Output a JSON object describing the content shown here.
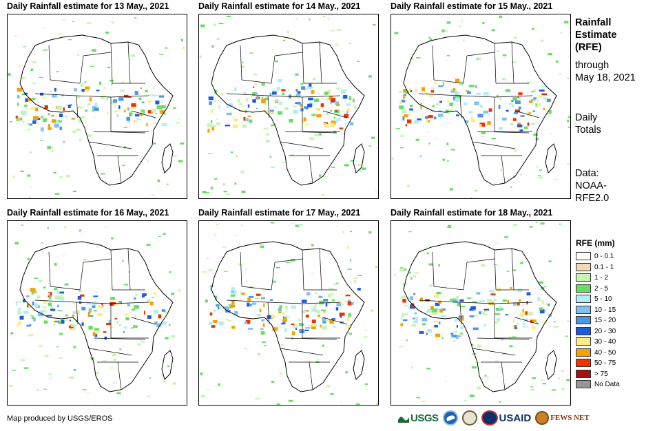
{
  "panels": [
    {
      "title": "Daily Rainfall estimate for 13 May., 2021"
    },
    {
      "title": "Daily Rainfall estimate for 14 May., 2021"
    },
    {
      "title": "Daily Rainfall estimate for 15 May., 2021"
    },
    {
      "title": "Daily Rainfall estimate for 16 May., 2021"
    },
    {
      "title": "Daily Rainfall estimate for 17 May., 2021"
    },
    {
      "title": "Daily Rainfall estimate for 18 May., 2021"
    }
  ],
  "sidebar": {
    "title_line1": "Rainfall",
    "title_line2": "Estimate",
    "title_line3": "(RFE)",
    "through_label": "through",
    "through_date": "May 18, 2021",
    "totals_line1": "Daily",
    "totals_line2": "Totals",
    "data_line1": "Data:",
    "data_line2": "NOAA-",
    "data_line3": "RFE2.0"
  },
  "legend": {
    "title": "RFE (mm)",
    "items": [
      {
        "label": "0 - 0.1",
        "color": "#ffffff"
      },
      {
        "label": "0.1 - 1",
        "color": "#eed9b8"
      },
      {
        "label": "1 - 2",
        "color": "#c8f5b4"
      },
      {
        "label": "2 - 5",
        "color": "#66dd66"
      },
      {
        "label": "5 - 10",
        "color": "#b4ecf8"
      },
      {
        "label": "10 - 15",
        "color": "#82c0f0"
      },
      {
        "label": "15 - 20",
        "color": "#4b96e6"
      },
      {
        "label": "20 - 30",
        "color": "#1e5adc"
      },
      {
        "label": "30 - 40",
        "color": "#fcec8c"
      },
      {
        "label": "40 - 50",
        "color": "#f5a200"
      },
      {
        "label": "50 - 75",
        "color": "#f03200"
      },
      {
        "label": "> 75",
        "color": "#a01414"
      },
      {
        "label": "No Data",
        "color": "#969696"
      }
    ]
  },
  "footer": {
    "credit": "Map produced by USGS/EROS",
    "logos": {
      "usgs": "USGS",
      "usaid": "USAID",
      "fews": "FEWS NET"
    }
  }
}
